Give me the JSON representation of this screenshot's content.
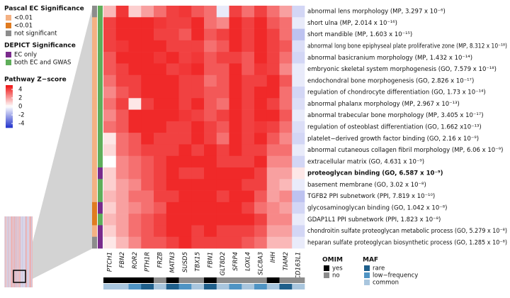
{
  "chart_data": {
    "type": "heatmap",
    "columns": [
      "PTCH1",
      "FBN2",
      "ROR2",
      "PTH1R",
      "FRZB",
      "MATN3",
      "SUSD5",
      "TBX15",
      "FBN1",
      "GLT8D2",
      "SFRP4",
      "LOXL4",
      "SLC8A3",
      "IHH",
      "TIAM2",
      "CD163L1"
    ],
    "rows": [
      "abnormal lens morphology (MP, 3.297 x 10⁻⁶)",
      "short ulna (MP, 2.014 x 10⁻¹⁶)",
      "short mandible (MP, 1.603 x 10⁻¹⁵)",
      "abnormal long bone epiphyseal plate proliferative zone (MP, 8.312 x 10⁻¹⁸)",
      "abnormal basicranium morphology (MP, 1.432 x 10⁻¹⁴)",
      "embryonic skeletal system morphogenesis (GO, 7.579 x 10⁻¹⁸)",
      "endochondral bone morphogenesis (GO, 2.826 x 10⁻¹⁷)",
      "regulation of chondrocyte differentiation (GO, 1.73 x 10⁻¹⁴)",
      "abnormal phalanx morphology (MP, 2.967 x 10⁻¹³)",
      "abnormal trabecular bone morphology (MP, 3.405 x 10⁻¹⁷)",
      "regulation of osteoblast differentiation (GO, 1.662 x10⁻¹³)",
      "platelet−derived growth factor binding (GO, 2.16 x 10⁻⁹)",
      "abnormal cutaneous collagen fibril morphology (MP, 6.06 x 10⁻⁹)",
      "extracellular matrix (GO, 4.631 x 10⁻⁹)",
      "proteoglycan binding (GO, 6.587 x 10⁻⁹)",
      "basement membrane (GO, 3.02 x 10⁻⁸)",
      "TGFB2 PPI subnetwork (PPI, 7.819 x 10⁻¹⁰)",
      "glycosaminoglycan binding (GO, 1.042 x 10⁻⁸)",
      "GDAP1L1 PPI subnetwork (PPI, 1.823 x 10⁻⁸)",
      "chondroitin sulfate proteoglycan metabolic process (GO, 5.279 x 10⁻⁸)",
      "heparan sulfate proteoglycan biosynthetic process (GO, 1.285 x 10⁻⁸)"
    ],
    "bold_row": 14,
    "values": [
      [
        1.5,
        4.2,
        1.0,
        2.0,
        3.0,
        4.0,
        4.2,
        3.5,
        3.0,
        -0.5,
        4.0,
        3.0,
        4.0,
        3.0,
        2.0,
        -1.0
      ],
      [
        4.0,
        4.5,
        4.5,
        4.5,
        4.2,
        4.0,
        4.0,
        4.5,
        3.0,
        2.5,
        4.5,
        4.0,
        4.5,
        3.5,
        3.0,
        -0.5
      ],
      [
        4.0,
        4.5,
        4.5,
        4.5,
        4.0,
        4.0,
        3.5,
        4.5,
        3.5,
        4.0,
        4.5,
        4.0,
        4.5,
        4.0,
        3.0,
        -1.5
      ],
      [
        4.0,
        4.2,
        4.5,
        4.5,
        4.5,
        4.0,
        4.0,
        4.0,
        3.0,
        3.5,
        4.5,
        4.0,
        4.5,
        4.0,
        3.5,
        -0.8
      ],
      [
        3.5,
        4.5,
        4.5,
        4.5,
        4.2,
        4.5,
        4.0,
        4.2,
        3.5,
        4.0,
        4.0,
        3.5,
        4.5,
        4.0,
        3.0,
        -1.0
      ],
      [
        3.5,
        4.0,
        4.5,
        4.5,
        4.5,
        4.0,
        4.2,
        4.5,
        3.5,
        3.5,
        4.5,
        3.5,
        4.2,
        4.0,
        2.5,
        -0.5
      ],
      [
        3.0,
        4.0,
        4.0,
        4.5,
        4.5,
        4.5,
        4.0,
        4.0,
        3.0,
        3.5,
        4.5,
        4.0,
        4.0,
        4.5,
        3.5,
        -0.5
      ],
      [
        2.5,
        3.5,
        4.0,
        4.5,
        4.5,
        4.5,
        4.0,
        4.0,
        3.5,
        3.5,
        4.5,
        4.0,
        4.5,
        4.5,
        3.0,
        -1.0
      ],
      [
        3.0,
        4.0,
        0.5,
        4.0,
        4.5,
        4.5,
        4.0,
        4.5,
        3.5,
        3.0,
        4.5,
        4.0,
        4.5,
        4.0,
        3.0,
        -0.8
      ],
      [
        2.5,
        3.5,
        4.5,
        4.5,
        4.5,
        4.5,
        4.2,
        4.0,
        3.5,
        4.0,
        4.5,
        4.0,
        4.5,
        4.5,
        3.5,
        -0.5
      ],
      [
        3.0,
        3.5,
        4.5,
        4.5,
        4.5,
        4.0,
        4.0,
        4.5,
        4.0,
        3.5,
        4.5,
        4.0,
        4.2,
        4.0,
        3.0,
        -0.8
      ],
      [
        0.5,
        3.0,
        3.5,
        4.5,
        4.0,
        4.0,
        4.0,
        4.5,
        4.0,
        3.0,
        4.5,
        4.0,
        4.5,
        3.5,
        2.5,
        -1.0
      ],
      [
        0.8,
        3.0,
        3.5,
        4.0,
        4.0,
        4.0,
        4.5,
        4.0,
        4.5,
        4.0,
        4.5,
        4.0,
        4.0,
        3.0,
        3.0,
        -0.5
      ],
      [
        0.0,
        2.5,
        3.0,
        3.5,
        4.0,
        4.5,
        4.5,
        4.5,
        4.5,
        4.0,
        4.0,
        4.0,
        4.5,
        2.5,
        2.5,
        -1.0
      ],
      [
        1.0,
        2.5,
        3.0,
        3.5,
        4.0,
        4.5,
        4.0,
        4.0,
        4.5,
        4.5,
        4.5,
        4.5,
        4.0,
        2.0,
        2.0,
        0.5
      ],
      [
        1.0,
        2.0,
        2.5,
        3.5,
        4.0,
        4.5,
        4.5,
        4.5,
        4.5,
        4.5,
        4.5,
        4.0,
        4.0,
        2.0,
        1.5,
        -0.5
      ],
      [
        1.5,
        2.0,
        3.0,
        3.0,
        4.0,
        4.0,
        4.5,
        4.5,
        4.5,
        4.0,
        4.5,
        4.5,
        3.5,
        2.0,
        2.5,
        -1.5
      ],
      [
        1.0,
        2.0,
        2.5,
        3.0,
        3.5,
        4.5,
        4.5,
        4.5,
        4.5,
        4.5,
        4.5,
        4.0,
        3.0,
        2.5,
        2.0,
        -1.0
      ],
      [
        1.5,
        2.0,
        3.0,
        3.5,
        4.0,
        4.5,
        4.5,
        4.5,
        4.5,
        4.5,
        4.5,
        4.5,
        4.0,
        2.5,
        2.5,
        -0.5
      ],
      [
        1.0,
        2.0,
        3.0,
        3.5,
        4.0,
        4.5,
        4.5,
        4.0,
        4.5,
        4.0,
        4.0,
        4.0,
        3.5,
        2.0,
        2.0,
        -1.0
      ],
      [
        0.5,
        1.5,
        2.5,
        3.5,
        3.5,
        4.0,
        4.5,
        4.0,
        4.0,
        4.0,
        4.0,
        3.5,
        3.0,
        1.5,
        1.5,
        -0.5
      ]
    ],
    "colorbar": {
      "title": "Pathway Z−score",
      "zlim": [
        -5,
        5
      ],
      "ticks": [
        4,
        2,
        0,
        -2,
        -4
      ],
      "low_color": "#2233cc",
      "mid_color": "#ffffff",
      "high_color": "#ee1111"
    },
    "pascal": {
      "title": "Pascal EC Significance",
      "categories": [
        {
          "label": "<0.01",
          "color": "#f4b183"
        },
        {
          "label": "<0.01",
          "color": "#e07b20"
        },
        {
          "label": "not significant",
          "color": "#8c8c8c"
        }
      ],
      "values": [
        2,
        0,
        0,
        0,
        0,
        0,
        0,
        0,
        0,
        0,
        0,
        0,
        0,
        0,
        0,
        0,
        0,
        1,
        1,
        0,
        2
      ]
    },
    "depict": {
      "title": "DEPICT Significance",
      "categories": [
        {
          "label": "EC only",
          "color": "#7a2b8c"
        },
        {
          "label": "both EC and GWAS",
          "color": "#5fae5a"
        }
      ],
      "values": [
        1,
        1,
        1,
        1,
        1,
        1,
        1,
        1,
        1,
        1,
        1,
        1,
        1,
        1,
        0,
        1,
        1,
        0,
        1,
        0,
        0
      ]
    },
    "omim": {
      "title": "OMIM",
      "categories": [
        {
          "label": "yes",
          "color": "#000000"
        },
        {
          "label": "no",
          "color": "#8c8c8c"
        }
      ],
      "values": [
        0,
        0,
        0,
        0,
        1,
        0,
        1,
        1,
        0,
        1,
        1,
        1,
        1,
        0,
        1,
        1
      ]
    },
    "maf": {
      "title": "MAF",
      "categories": [
        {
          "label": "rare",
          "color": "#1f5f8b"
        },
        {
          "label": "low−frequency",
          "color": "#4f94c4"
        },
        {
          "label": "common",
          "color": "#a9c6de"
        }
      ],
      "values": [
        2,
        2,
        1,
        0,
        2,
        0,
        1,
        2,
        0,
        2,
        1,
        2,
        1,
        2,
        0,
        2
      ]
    }
  }
}
